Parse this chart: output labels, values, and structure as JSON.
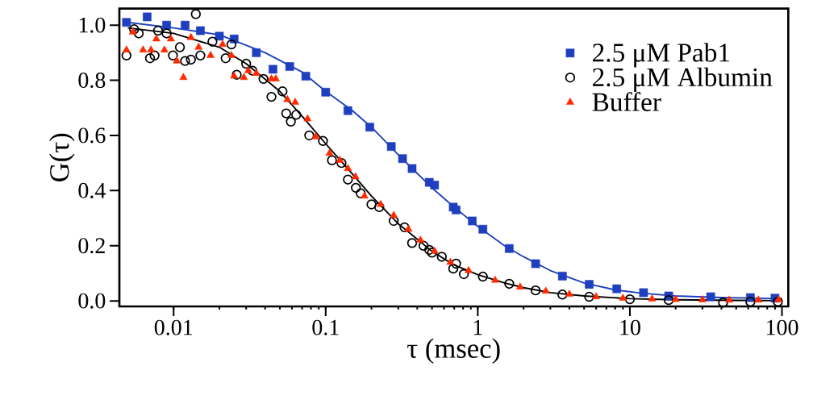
{
  "chart_data": {
    "type": "scatter",
    "xlabel": "τ (msec)",
    "ylabel": "G(τ)",
    "log": "x",
    "legend": "top right",
    "grid": false,
    "xlim": [
      0.0044,
      110
    ],
    "ylim": [
      -0.02,
      1.06
    ],
    "xticks": [
      0.01,
      0.1,
      1,
      10,
      100
    ],
    "yticks": [
      {
        "value": 0,
        "label": "0.0"
      },
      0.2,
      0.4,
      0.6,
      0.8,
      {
        "value": 1,
        "label": "1.0"
      }
    ],
    "series": [
      {
        "name": "2.5 μM Pab1",
        "marker": "square",
        "color": "#1f3fbf",
        "x": [
          0.0049,
          0.0067,
          0.009,
          0.0119,
          0.015,
          0.02,
          0.025,
          0.035,
          0.045,
          0.058,
          0.074,
          0.1,
          0.14,
          0.195,
          0.27,
          0.32,
          0.37,
          0.48,
          0.52,
          0.69,
          0.72,
          0.92,
          1.08,
          1.61,
          2.4,
          3.6,
          5.4,
          8.2,
          12.3,
          18,
          34,
          62,
          90
        ],
        "values": [
          1.01,
          1.03,
          1.0,
          1.0,
          0.98,
          0.96,
          0.95,
          0.9,
          0.84,
          0.85,
          0.815,
          0.757,
          0.69,
          0.63,
          0.56,
          0.516,
          0.48,
          0.43,
          0.42,
          0.34,
          0.33,
          0.29,
          0.26,
          0.19,
          0.135,
          0.09,
          0.06,
          0.044,
          0.03,
          0.018,
          0.015,
          0.012,
          0.01
        ]
      },
      {
        "name": "2.5 μM Albumin",
        "marker": "circle",
        "color": "#000000",
        "x": [
          0.0049,
          0.0055,
          0.0059,
          0.007,
          0.0075,
          0.0079,
          0.009,
          0.0099,
          0.011,
          0.0119,
          0.013,
          0.014,
          0.015,
          0.018,
          0.022,
          0.024,
          0.026,
          0.03,
          0.033,
          0.039,
          0.044,
          0.052,
          0.055,
          0.059,
          0.064,
          0.078,
          0.096,
          0.11,
          0.127,
          0.14,
          0.158,
          0.17,
          0.2,
          0.225,
          0.28,
          0.33,
          0.37,
          0.44,
          0.48,
          0.5,
          0.58,
          0.69,
          0.72,
          0.81,
          1.08,
          1.61,
          2.4,
          3.6,
          5.4,
          10,
          18,
          41,
          62,
          94
        ],
        "values": [
          0.89,
          0.985,
          0.97,
          0.88,
          0.89,
          0.98,
          0.97,
          0.89,
          0.92,
          0.87,
          0.875,
          1.04,
          0.89,
          0.94,
          0.88,
          0.93,
          0.82,
          0.86,
          0.835,
          0.805,
          0.74,
          0.76,
          0.68,
          0.65,
          0.675,
          0.6,
          0.58,
          0.51,
          0.5,
          0.44,
          0.41,
          0.39,
          0.35,
          0.34,
          0.29,
          0.267,
          0.21,
          0.2,
          0.185,
          0.175,
          0.16,
          0.117,
          0.135,
          0.097,
          0.088,
          0.062,
          0.038,
          0.023,
          0.015,
          0.006,
          0.003,
          -0.006,
          -0.003,
          -0.003
        ]
      },
      {
        "name": "Buffer",
        "marker": "triangle",
        "color": "#ff2a00",
        "x": [
          0.0049,
          0.0054,
          0.0063,
          0.0071,
          0.0077,
          0.0087,
          0.0096,
          0.0105,
          0.0116,
          0.013,
          0.0146,
          0.0175,
          0.021,
          0.024,
          0.025,
          0.029,
          0.031,
          0.035,
          0.044,
          0.047,
          0.056,
          0.063,
          0.076,
          0.086,
          0.106,
          0.124,
          0.14,
          0.157,
          0.18,
          0.23,
          0.28,
          0.35,
          0.42,
          0.52,
          0.66,
          0.87,
          1.3,
          1.9,
          2.8,
          4,
          6,
          9,
          14,
          20,
          30,
          45,
          70,
          95
        ],
        "values": [
          0.91,
          0.975,
          0.91,
          0.91,
          0.95,
          0.91,
          0.95,
          0.87,
          0.81,
          0.955,
          0.92,
          0.89,
          0.93,
          0.89,
          0.815,
          0.81,
          0.835,
          0.825,
          0.805,
          0.805,
          0.73,
          0.72,
          0.66,
          0.595,
          0.535,
          0.51,
          0.48,
          0.45,
          0.38,
          0.35,
          0.31,
          0.26,
          0.22,
          0.18,
          0.14,
          0.11,
          0.075,
          0.05,
          0.035,
          0.024,
          0.015,
          0.01,
          0.007,
          0.005,
          0.004,
          0.003,
          0.003,
          0.004
        ]
      },
      {
        "type": "line",
        "marker": "none",
        "color": "#1f3fbf",
        "x": [
          0.005,
          0.01,
          0.02,
          0.04,
          0.07,
          0.1,
          0.15,
          0.2,
          0.3,
          0.5,
          0.7,
          1,
          1.5,
          2,
          3,
          5,
          8,
          12,
          20,
          40,
          100
        ],
        "values": [
          1.01,
          0.99,
          0.965,
          0.9,
          0.83,
          0.76,
          0.69,
          0.63,
          0.53,
          0.41,
          0.34,
          0.27,
          0.2,
          0.16,
          0.11,
          0.065,
          0.04,
          0.028,
          0.018,
          0.012,
          0.008
        ]
      },
      {
        "type": "line",
        "marker": "none",
        "color": "#000000",
        "x": [
          0.005,
          0.01,
          0.02,
          0.03,
          0.05,
          0.07,
          0.1,
          0.15,
          0.2,
          0.3,
          0.5,
          0.7,
          1,
          1.5,
          2,
          3,
          5,
          10,
          20,
          50,
          100
        ],
        "values": [
          0.99,
          0.97,
          0.92,
          0.86,
          0.76,
          0.67,
          0.57,
          0.46,
          0.38,
          0.28,
          0.18,
          0.13,
          0.095,
          0.065,
          0.048,
          0.03,
          0.018,
          0.008,
          0.004,
          0.002,
          0.001
        ]
      }
    ]
  }
}
